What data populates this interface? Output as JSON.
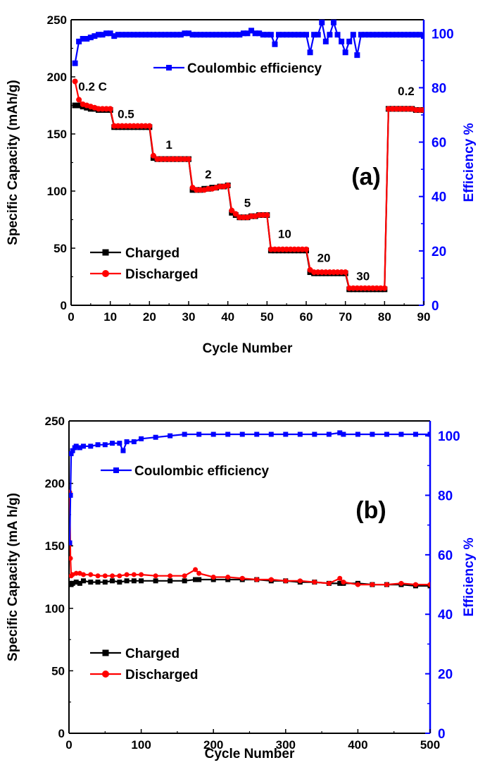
{
  "colors": {
    "charged": "#000000",
    "discharged": "#ff0000",
    "efficiency": "#0000ff",
    "axis_left": "#000000",
    "axis_right": "#0000ff"
  },
  "chart_data": [
    {
      "type": "line",
      "panel_label": "(a)",
      "xlabel": "Cycle Number",
      "ylabel": "Specific Capacity (mAh/g)",
      "y2label": "Efficiency %",
      "xlim": [
        0,
        90
      ],
      "ylim": [
        0,
        250
      ],
      "y2lim": [
        0,
        105
      ],
      "xticks": [
        0,
        10,
        20,
        30,
        40,
        50,
        60,
        70,
        80,
        90
      ],
      "yticks": [
        0,
        50,
        100,
        150,
        200,
        250
      ],
      "y2ticks": [
        0,
        20,
        40,
        60,
        80,
        100
      ],
      "legend": {
        "charged": "Charged",
        "discharged": "Discharged",
        "efficiency": "Coulombic efficiency"
      },
      "annotations": [
        {
          "text": "0.2 C",
          "x": 5.5,
          "y": 188
        },
        {
          "text": "0.5",
          "x": 14,
          "y": 164
        },
        {
          "text": "1",
          "x": 25,
          "y": 137
        },
        {
          "text": "2",
          "x": 35,
          "y": 111
        },
        {
          "text": "5",
          "x": 45,
          "y": 86
        },
        {
          "text": "10",
          "x": 54.5,
          "y": 59
        },
        {
          "text": "20",
          "x": 64.5,
          "y": 38
        },
        {
          "text": "30",
          "x": 74.5,
          "y": 22
        },
        {
          "text": "0.2",
          "x": 85.5,
          "y": 184
        }
      ],
      "series": [
        {
          "name": "Charged",
          "key": "charged",
          "x": [
            1,
            2,
            3,
            4,
            5,
            6,
            7,
            8,
            9,
            10,
            11,
            12,
            13,
            14,
            15,
            16,
            17,
            18,
            19,
            20,
            21,
            22,
            23,
            24,
            25,
            26,
            27,
            28,
            29,
            30,
            31,
            32,
            33,
            34,
            35,
            36,
            37,
            38,
            39,
            40,
            41,
            42,
            43,
            44,
            45,
            46,
            47,
            48,
            49,
            50,
            51,
            52,
            53,
            54,
            55,
            56,
            57,
            58,
            59,
            60,
            61,
            62,
            63,
            64,
            65,
            66,
            67,
            68,
            69,
            70,
            71,
            72,
            73,
            74,
            75,
            76,
            77,
            78,
            79,
            80,
            81,
            82,
            83,
            84,
            85,
            86,
            87,
            88,
            89,
            90
          ],
          "y": [
            175,
            175,
            174,
            173,
            172,
            172,
            171,
            171,
            171,
            171,
            156,
            156,
            156,
            156,
            156,
            156,
            156,
            156,
            156,
            156,
            129,
            128,
            128,
            128,
            128,
            128,
            128,
            128,
            128,
            128,
            101,
            101,
            101,
            102,
            102,
            103,
            103,
            104,
            104,
            105,
            81,
            79,
            77,
            77,
            77,
            78,
            78,
            79,
            79,
            79,
            48,
            48,
            48,
            48,
            48,
            48,
            48,
            48,
            48,
            48,
            29,
            28,
            28,
            28,
            28,
            28,
            28,
            28,
            28,
            28,
            14,
            14,
            14,
            14,
            14,
            14,
            14,
            14,
            14,
            14,
            172,
            172,
            172,
            172,
            172,
            172,
            172,
            171,
            171,
            171
          ]
        },
        {
          "name": "Discharged",
          "key": "discharged",
          "x": [
            1,
            2,
            3,
            4,
            5,
            6,
            7,
            8,
            9,
            10,
            11,
            12,
            13,
            14,
            15,
            16,
            17,
            18,
            19,
            20,
            21,
            22,
            23,
            24,
            25,
            26,
            27,
            28,
            29,
            30,
            31,
            32,
            33,
            34,
            35,
            36,
            37,
            38,
            39,
            40,
            41,
            42,
            43,
            44,
            45,
            46,
            47,
            48,
            49,
            50,
            51,
            52,
            53,
            54,
            55,
            56,
            57,
            58,
            59,
            60,
            61,
            62,
            63,
            64,
            65,
            66,
            67,
            68,
            69,
            70,
            71,
            72,
            73,
            74,
            75,
            76,
            77,
            78,
            79,
            80,
            81,
            82,
            83,
            84,
            85,
            86,
            87,
            88,
            89,
            90
          ],
          "y": [
            196,
            180,
            176,
            175,
            174,
            173,
            172,
            172,
            172,
            172,
            157,
            157,
            157,
            157,
            157,
            157,
            157,
            157,
            157,
            157,
            131,
            128,
            128,
            128,
            128,
            128,
            128,
            128,
            128,
            128,
            103,
            101,
            101,
            101,
            102,
            102,
            103,
            104,
            104,
            105,
            83,
            80,
            77,
            77,
            77,
            78,
            78,
            79,
            79,
            79,
            49,
            49,
            49,
            49,
            49,
            49,
            49,
            49,
            49,
            49,
            31,
            29,
            29,
            29,
            29,
            29,
            29,
            29,
            29,
            29,
            15,
            15,
            15,
            15,
            15,
            15,
            15,
            15,
            15,
            15,
            172,
            172,
            172,
            172,
            172,
            172,
            172,
            171,
            171,
            171
          ]
        },
        {
          "name": "Coulombic efficiency",
          "key": "efficiency",
          "axis": "right",
          "x": [
            1,
            2,
            3,
            4,
            5,
            6,
            7,
            8,
            9,
            10,
            11,
            12,
            13,
            14,
            15,
            16,
            17,
            18,
            19,
            20,
            21,
            22,
            23,
            24,
            25,
            26,
            27,
            28,
            29,
            30,
            31,
            32,
            33,
            34,
            35,
            36,
            37,
            38,
            39,
            40,
            41,
            42,
            43,
            44,
            45,
            46,
            47,
            48,
            49,
            50,
            51,
            52,
            53,
            54,
            55,
            56,
            57,
            58,
            59,
            60,
            61,
            62,
            63,
            64,
            65,
            66,
            67,
            68,
            69,
            70,
            71,
            72,
            73,
            74,
            75,
            76,
            77,
            78,
            79,
            80,
            81,
            82,
            83,
            84,
            85,
            86,
            87,
            88,
            89,
            90
          ],
          "y": [
            89,
            97,
            98,
            98,
            98.5,
            99,
            99.5,
            99.5,
            100,
            100,
            99,
            99.5,
            99.5,
            99.5,
            99.5,
            99.5,
            99.5,
            99.5,
            99.5,
            99.5,
            99.5,
            99.5,
            99.5,
            99.5,
            99.5,
            99.5,
            99.5,
            99.5,
            100,
            100,
            99.5,
            99.5,
            99.5,
            99.5,
            99.5,
            99.5,
            99.5,
            99.5,
            99.5,
            99.5,
            99.5,
            99.5,
            99.5,
            100,
            100,
            101,
            100,
            100,
            99.5,
            99.5,
            99.5,
            96,
            99.5,
            99.5,
            99.5,
            99.5,
            99.5,
            99.5,
            99.5,
            99.5,
            93,
            99.5,
            99.5,
            104,
            97,
            99.5,
            104,
            99.5,
            97,
            93,
            97,
            99.5,
            92,
            99.5,
            99.5,
            99.5,
            99.5,
            99.5,
            99.5,
            99.5,
            99.5,
            99.5,
            99.5,
            99.5,
            99.5,
            99.5,
            99.5,
            99.5,
            99.5,
            99
          ]
        }
      ]
    },
    {
      "type": "line",
      "panel_label": "(b)",
      "xlabel": "Cycle Number",
      "ylabel": "Specific Capacity (mA h/g)",
      "y2label": "Efficiency %",
      "xlim": [
        0,
        500
      ],
      "ylim": [
        0,
        250
      ],
      "y2lim": [
        0,
        105
      ],
      "xticks": [
        0,
        100,
        200,
        300,
        400,
        500
      ],
      "yticks": [
        0,
        50,
        100,
        150,
        200,
        250
      ],
      "y2ticks": [
        0,
        20,
        40,
        60,
        80,
        100
      ],
      "legend": {
        "charged": "Charged",
        "discharged": "Discharged",
        "efficiency": "Coulombic efficiency"
      },
      "annotations": [],
      "series": [
        {
          "name": "Charged",
          "key": "charged",
          "x": [
            1,
            3,
            5,
            10,
            15,
            20,
            30,
            40,
            50,
            60,
            70,
            80,
            90,
            100,
            120,
            140,
            160,
            175,
            180,
            200,
            220,
            240,
            260,
            280,
            300,
            320,
            340,
            360,
            375,
            380,
            400,
            420,
            440,
            460,
            480,
            500
          ],
          "y": [
            120,
            119,
            120,
            121,
            120,
            122,
            121,
            121,
            121,
            122,
            121,
            122,
            122,
            122,
            122,
            122,
            122,
            123,
            123,
            123,
            123,
            123,
            123,
            122,
            122,
            121,
            121,
            120,
            120,
            120,
            120,
            119,
            119,
            119,
            118,
            118
          ]
        },
        {
          "name": "Discharged",
          "key": "discharged",
          "x": [
            1,
            2,
            3,
            5,
            10,
            15,
            20,
            30,
            40,
            50,
            60,
            70,
            80,
            90,
            100,
            120,
            140,
            160,
            175,
            180,
            200,
            220,
            240,
            260,
            280,
            300,
            320,
            340,
            360,
            375,
            380,
            400,
            420,
            440,
            460,
            480,
            500
          ],
          "y": [
            193,
            140,
            126,
            127,
            128,
            128,
            127,
            127,
            126,
            126,
            126,
            126,
            127,
            127,
            127,
            126,
            126,
            126,
            131,
            128,
            125,
            125,
            124,
            123,
            123,
            122,
            122,
            121,
            120,
            124,
            121,
            119,
            119,
            119,
            120,
            119,
            119
          ]
        },
        {
          "name": "Coulombic efficiency",
          "key": "efficiency",
          "axis": "right",
          "x": [
            1,
            2,
            3,
            5,
            8,
            10,
            15,
            20,
            30,
            40,
            50,
            60,
            70,
            75,
            80,
            90,
            100,
            120,
            140,
            160,
            180,
            200,
            220,
            240,
            260,
            280,
            300,
            320,
            340,
            360,
            375,
            380,
            400,
            420,
            440,
            460,
            480,
            500
          ],
          "y": [
            64,
            80,
            94,
            95,
            96,
            96.5,
            96,
            96.5,
            96.5,
            97,
            97,
            97.5,
            97.5,
            95,
            98,
            98,
            99,
            99.5,
            100,
            100.5,
            100.5,
            100.5,
            100.5,
            100.5,
            100.5,
            100.5,
            100.5,
            100.5,
            100.5,
            100.5,
            101,
            100.5,
            100.5,
            100.5,
            100.5,
            100.5,
            100.5,
            100.5
          ]
        }
      ]
    }
  ]
}
